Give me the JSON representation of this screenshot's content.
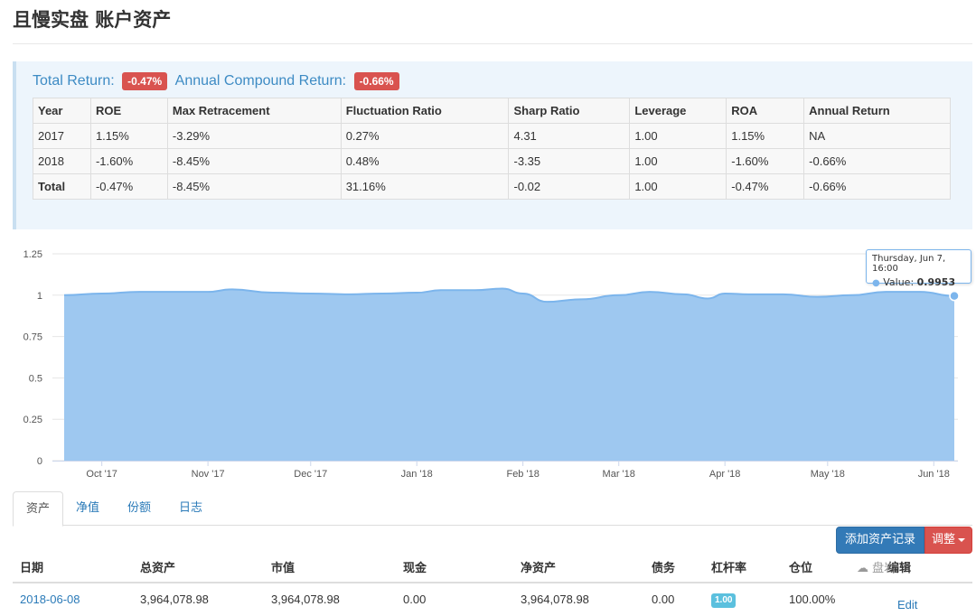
{
  "page": {
    "title": "且慢实盘 账户资产"
  },
  "summary": {
    "total_return_label": "Total Return:",
    "total_return_value": "-0.47%",
    "annual_compound_label": "Annual Compound Return:",
    "annual_compound_value": "-0.66%",
    "badge_color": "#d9534f"
  },
  "stats_table": {
    "headers": [
      "Year",
      "ROE",
      "Max Retracement",
      "Fluctuation Ratio",
      "Sharp Ratio",
      "Leverage",
      "ROA",
      "Annual Return"
    ],
    "rows": [
      [
        "2017",
        "1.15%",
        "-3.29%",
        "0.27%",
        "4.31",
        "1.00",
        "1.15%",
        "NA"
      ],
      [
        "2018",
        "-1.60%",
        "-8.45%",
        "0.48%",
        "-3.35",
        "1.00",
        "-1.60%",
        "-0.66%"
      ],
      [
        "Total",
        "-0.47%",
        "-8.45%",
        "31.16%",
        "-0.02",
        "1.00",
        "-0.47%",
        "-0.66%"
      ]
    ]
  },
  "chart_data": {
    "type": "area",
    "color": "#7cb5ec",
    "fill_color": "#9ec8f0",
    "y_ticks": [
      "0",
      "0.25",
      "0.5",
      "0.75",
      "1",
      "1.25"
    ],
    "ylim": [
      0,
      1.25
    ],
    "x_ticks": [
      "Oct '17",
      "Nov '17",
      "Dec '17",
      "Jan '18",
      "Feb '18",
      "Mar '18",
      "Apr '18",
      "May '18",
      "Jun '18"
    ],
    "x_tick_dates": [
      "2017-10-01",
      "2017-11-01",
      "2017-12-01",
      "2018-01-01",
      "2018-02-01",
      "2018-03-01",
      "2018-04-01",
      "2018-05-01",
      "2018-06-01"
    ],
    "xlim": [
      "2017-09-20",
      "2018-06-07"
    ],
    "grid": true,
    "legend": "none",
    "series": [
      {
        "x": [
          "2017-09-20",
          "2017-10-01",
          "2017-10-12",
          "2017-10-22",
          "2017-11-01",
          "2017-11-08",
          "2017-11-20",
          "2017-12-01",
          "2017-12-12",
          "2017-12-22",
          "2018-01-01",
          "2018-01-08",
          "2018-01-18",
          "2018-01-26",
          "2018-02-01",
          "2018-02-08",
          "2018-02-18",
          "2018-03-01",
          "2018-03-10",
          "2018-03-20",
          "2018-03-27",
          "2018-04-01",
          "2018-04-08",
          "2018-04-18",
          "2018-04-28",
          "2018-05-08",
          "2018-05-18",
          "2018-05-28",
          "2018-06-07"
        ],
        "y": [
          1.0,
          1.01,
          1.02,
          1.02,
          1.02,
          1.035,
          1.015,
          1.01,
          1.005,
          1.01,
          1.015,
          1.03,
          1.03,
          1.04,
          1.01,
          0.96,
          0.975,
          1.0,
          1.02,
          1.005,
          0.98,
          1.01,
          1.005,
          1.005,
          0.99,
          1.0,
          1.02,
          1.02,
          0.9953
        ]
      }
    ],
    "tooltip": {
      "title": "Thursday, Jun 7, 16:00",
      "label": "Value:",
      "value": "0.9953"
    }
  },
  "tabs": [
    {
      "label": "资产",
      "active": true
    },
    {
      "label": "净值",
      "active": false
    },
    {
      "label": "份额",
      "active": false
    },
    {
      "label": "日志",
      "active": false
    }
  ],
  "actions": {
    "add_record": "添加资产记录",
    "adjust": "调整"
  },
  "assets_table": {
    "headers": [
      "日期",
      "总资产",
      "市值",
      "现金",
      "净资产",
      "债务",
      "杠杆率",
      "仓位",
      "编辑"
    ],
    "rows": [
      {
        "date": "2018-06-08",
        "total_assets": "3,964,078.98",
        "market_value": "3,964,078.98",
        "cash": "0.00",
        "net_assets": "3,964,078.98",
        "debt": "0.00",
        "leverage": "1.00",
        "position": "100.00%",
        "edit": "Edit"
      }
    ]
  },
  "watermark": "盘岩"
}
